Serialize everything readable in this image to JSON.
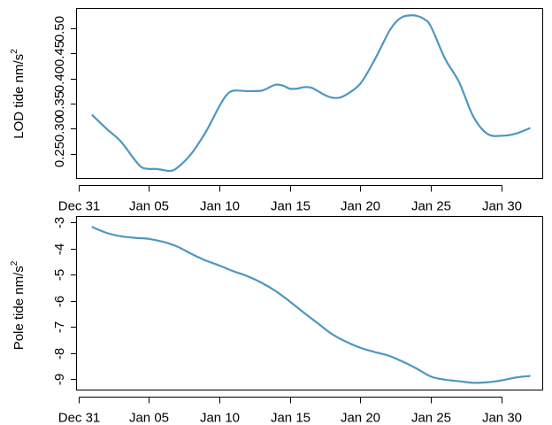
{
  "chart_data": [
    {
      "type": "line",
      "title": "",
      "xlabel": "",
      "ylabel": "LOD tide nm/s",
      "ylabel_superscript": "2",
      "x_tick_labels": [
        "Dec 31",
        "Jan 05",
        "Jan 10",
        "Jan 15",
        "Jan 20",
        "Jan 25",
        "Jan 30"
      ],
      "x_tick_days": [
        0,
        5,
        10,
        15,
        20,
        25,
        30
      ],
      "xlim_days": [
        -0.1,
        32.9
      ],
      "y_ticks": [
        0.25,
        0.3,
        0.35,
        0.4,
        0.45,
        0.5
      ],
      "y_tick_labels": [
        "0.25",
        "0.30",
        "0.35",
        "0.40",
        "0.45",
        "0.50"
      ],
      "ylim": [
        0.202,
        0.539
      ],
      "grid": false,
      "color": "#4e97c0",
      "x": [
        1,
        2,
        3,
        4,
        4.5,
        5,
        5.5,
        6,
        6.5,
        7,
        8,
        9,
        9.5,
        10,
        10.5,
        11,
        12,
        13,
        13.5,
        14,
        14.5,
        15,
        15.5,
        16,
        16.5,
        17,
        17.5,
        18,
        18.5,
        19,
        20,
        21,
        22,
        22.5,
        23,
        23.5,
        24,
        24.5,
        25,
        26,
        27,
        28,
        29,
        30,
        31,
        32
      ],
      "y": [
        0.327,
        0.3,
        0.275,
        0.238,
        0.223,
        0.22,
        0.22,
        0.218,
        0.216,
        0.222,
        0.25,
        0.292,
        0.318,
        0.345,
        0.367,
        0.376,
        0.375,
        0.376,
        0.382,
        0.388,
        0.386,
        0.38,
        0.38,
        0.383,
        0.382,
        0.375,
        0.367,
        0.362,
        0.362,
        0.368,
        0.39,
        0.437,
        0.492,
        0.512,
        0.523,
        0.526,
        0.525,
        0.519,
        0.504,
        0.44,
        0.393,
        0.325,
        0.29,
        0.286,
        0.29,
        0.301
      ]
    },
    {
      "type": "line",
      "title": "",
      "xlabel": "",
      "ylabel": "Pole tide nm/s",
      "ylabel_superscript": "2",
      "x_tick_labels": [
        "Dec 31",
        "Jan 05",
        "Jan 10",
        "Jan 15",
        "Jan 20",
        "Jan 25",
        "Jan 30"
      ],
      "x_tick_days": [
        0,
        5,
        10,
        15,
        20,
        25,
        30
      ],
      "xlim_days": [
        -0.1,
        32.9
      ],
      "y_ticks": [
        -9,
        -8,
        -7,
        -6,
        -5,
        -4,
        -3
      ],
      "y_tick_labels": [
        "-9",
        "-8",
        "-7",
        "-6",
        "-5",
        "-4",
        "-3"
      ],
      "ylim": [
        -9.4,
        -2.79
      ],
      "grid": false,
      "color": "#4e97c0",
      "x": [
        1,
        2,
        3,
        4,
        5,
        6,
        7,
        8,
        9,
        10,
        11,
        12,
        13,
        14,
        15,
        16,
        17,
        18,
        19,
        20,
        21,
        22,
        23,
        24,
        25,
        26,
        27,
        28,
        29,
        30,
        31,
        32
      ],
      "y": [
        -3.18,
        -3.4,
        -3.53,
        -3.59,
        -3.63,
        -3.74,
        -3.92,
        -4.2,
        -4.45,
        -4.65,
        -4.87,
        -5.06,
        -5.31,
        -5.63,
        -6.03,
        -6.46,
        -6.87,
        -7.28,
        -7.57,
        -7.8,
        -7.96,
        -8.1,
        -8.33,
        -8.6,
        -8.9,
        -9.02,
        -9.08,
        -9.14,
        -9.12,
        -9.05,
        -8.94,
        -8.88
      ]
    }
  ]
}
